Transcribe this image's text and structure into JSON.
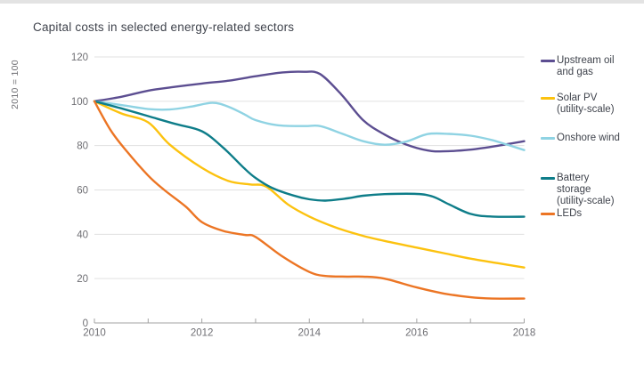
{
  "page": {
    "title": "Capital costs in selected energy-related sectors"
  },
  "chart_data": {
    "type": "line",
    "title": "Capital costs in selected energy-related sectors",
    "xlabel": "",
    "ylabel": "2010 = 100",
    "xlim": [
      2010,
      2018
    ],
    "ylim": [
      0,
      120
    ],
    "grid": "horizontal",
    "legend_position": "right",
    "colors": {
      "grid": "#e0e0e0",
      "axis": "#a3a3a3",
      "tick_text": "#6e6e73",
      "title_text": "#3f434c"
    },
    "y_ticks": [
      0,
      20,
      40,
      60,
      80,
      100,
      120
    ],
    "x_ticks": [
      2010,
      2011,
      2012,
      2013,
      2014,
      2015,
      2016,
      2017,
      2018
    ],
    "x_tick_labels": [
      "2010",
      "2012",
      "2014",
      "2016",
      "2018"
    ],
    "years": [
      2010,
      2011,
      2012,
      2013,
      2014,
      2015,
      2016,
      2017,
      2018
    ],
    "series": [
      {
        "name": "Upstream oil and gas",
        "legend_label": "Upstream oil\nand gas",
        "color": "#5c4e91",
        "values_by_year": [
          100,
          105,
          108,
          111.3,
          113,
          91.5,
          78.8,
          78.2,
          82
        ],
        "points": [
          [
            2010,
            100
          ],
          [
            2010.5,
            102
          ],
          [
            2011,
            104.8
          ],
          [
            2011.5,
            106.5
          ],
          [
            2012,
            108
          ],
          [
            2012.5,
            109.3
          ],
          [
            2013,
            111.3
          ],
          [
            2013.5,
            113
          ],
          [
            2013.9,
            113.3
          ],
          [
            2014.2,
            112.3
          ],
          [
            2014.6,
            103
          ],
          [
            2015,
            91.5
          ],
          [
            2015.4,
            85
          ],
          [
            2015.8,
            80.5
          ],
          [
            2016.2,
            77.8
          ],
          [
            2016.5,
            77.4
          ],
          [
            2017,
            78.2
          ],
          [
            2017.5,
            79.9
          ],
          [
            2018,
            82
          ]
        ]
      },
      {
        "name": "Solar PV (utility-scale)",
        "legend_label": "Solar PV\n(utility-scale)",
        "color": "#fcc20f",
        "values_by_year": [
          100,
          90.5,
          70,
          62,
          48,
          39.3,
          34,
          29,
          25
        ],
        "points": [
          [
            2010,
            100
          ],
          [
            2010.5,
            94.5
          ],
          [
            2011,
            90.5
          ],
          [
            2011.4,
            80.5
          ],
          [
            2012,
            70
          ],
          [
            2012.5,
            64
          ],
          [
            2012.9,
            62.5
          ],
          [
            2013.2,
            61.5
          ],
          [
            2013.6,
            53.5
          ],
          [
            2014,
            48
          ],
          [
            2014.5,
            43
          ],
          [
            2015,
            39.3
          ],
          [
            2015.5,
            36.5
          ],
          [
            2016,
            34
          ],
          [
            2016.5,
            31.5
          ],
          [
            2017,
            29
          ],
          [
            2017.5,
            27
          ],
          [
            2018,
            25
          ]
        ]
      },
      {
        "name": "Onshore wind",
        "legend_label": "Onshore wind",
        "color": "#8fd3e3",
        "values_by_year": [
          100,
          96.5,
          98.5,
          91.5,
          89,
          82,
          85,
          84.5,
          78
        ],
        "points": [
          [
            2010,
            100
          ],
          [
            2010.5,
            98.3
          ],
          [
            2011,
            96.5
          ],
          [
            2011.4,
            96.3
          ],
          [
            2011.8,
            97.6
          ],
          [
            2012.2,
            99.3
          ],
          [
            2012.5,
            97.5
          ],
          [
            2012.8,
            94
          ],
          [
            2013,
            91.5
          ],
          [
            2013.4,
            89.2
          ],
          [
            2013.9,
            88.8
          ],
          [
            2014.2,
            88.8
          ],
          [
            2014.6,
            85.5
          ],
          [
            2015,
            82
          ],
          [
            2015.4,
            80.4
          ],
          [
            2015.8,
            81.8
          ],
          [
            2016.2,
            85.2
          ],
          [
            2016.6,
            85.3
          ],
          [
            2017,
            84.5
          ],
          [
            2017.4,
            82.5
          ],
          [
            2017.7,
            80.3
          ],
          [
            2018,
            78
          ]
        ]
      },
      {
        "name": "Battery storage (utility-scale)",
        "legend_label": "Battery\nstorage\n(utility-scale)",
        "color": "#0e7d89",
        "values_by_year": [
          100,
          93.3,
          86.5,
          65.4,
          55.8,
          57.4,
          58.2,
          49.2,
          47.9
        ],
        "points": [
          [
            2010,
            100
          ],
          [
            2010.5,
            96.8
          ],
          [
            2011,
            93.3
          ],
          [
            2011.5,
            89.8
          ],
          [
            2012,
            86.5
          ],
          [
            2012.4,
            79
          ],
          [
            2012.8,
            69.5
          ],
          [
            2013,
            65.4
          ],
          [
            2013.3,
            61
          ],
          [
            2013.7,
            57.5
          ],
          [
            2014,
            55.8
          ],
          [
            2014.3,
            55.2
          ],
          [
            2014.7,
            56.2
          ],
          [
            2015,
            57.4
          ],
          [
            2015.4,
            58.1
          ],
          [
            2016,
            58.2
          ],
          [
            2016.3,
            57
          ],
          [
            2016.6,
            53.5
          ],
          [
            2017,
            49.2
          ],
          [
            2017.4,
            48
          ],
          [
            2018,
            47.9
          ]
        ]
      },
      {
        "name": "LEDs",
        "legend_label": "LEDs",
        "color": "#ec7524",
        "values_by_year": [
          100,
          66.5,
          45.5,
          38.8,
          23,
          20.9,
          16,
          11.6,
          11
        ],
        "points": [
          [
            2010,
            100
          ],
          [
            2010.3,
            87
          ],
          [
            2010.6,
            77.5
          ],
          [
            2011,
            66.5
          ],
          [
            2011.3,
            60
          ],
          [
            2011.7,
            52.5
          ],
          [
            2012,
            45.5
          ],
          [
            2012.4,
            41.5
          ],
          [
            2012.8,
            39.7
          ],
          [
            2013,
            38.8
          ],
          [
            2013.5,
            30
          ],
          [
            2014,
            23
          ],
          [
            2014.3,
            21.2
          ],
          [
            2014.7,
            20.9
          ],
          [
            2015,
            20.9
          ],
          [
            2015.4,
            20
          ],
          [
            2016,
            16
          ],
          [
            2016.5,
            13.3
          ],
          [
            2017,
            11.6
          ],
          [
            2017.4,
            11
          ],
          [
            2018,
            11
          ]
        ]
      }
    ]
  }
}
